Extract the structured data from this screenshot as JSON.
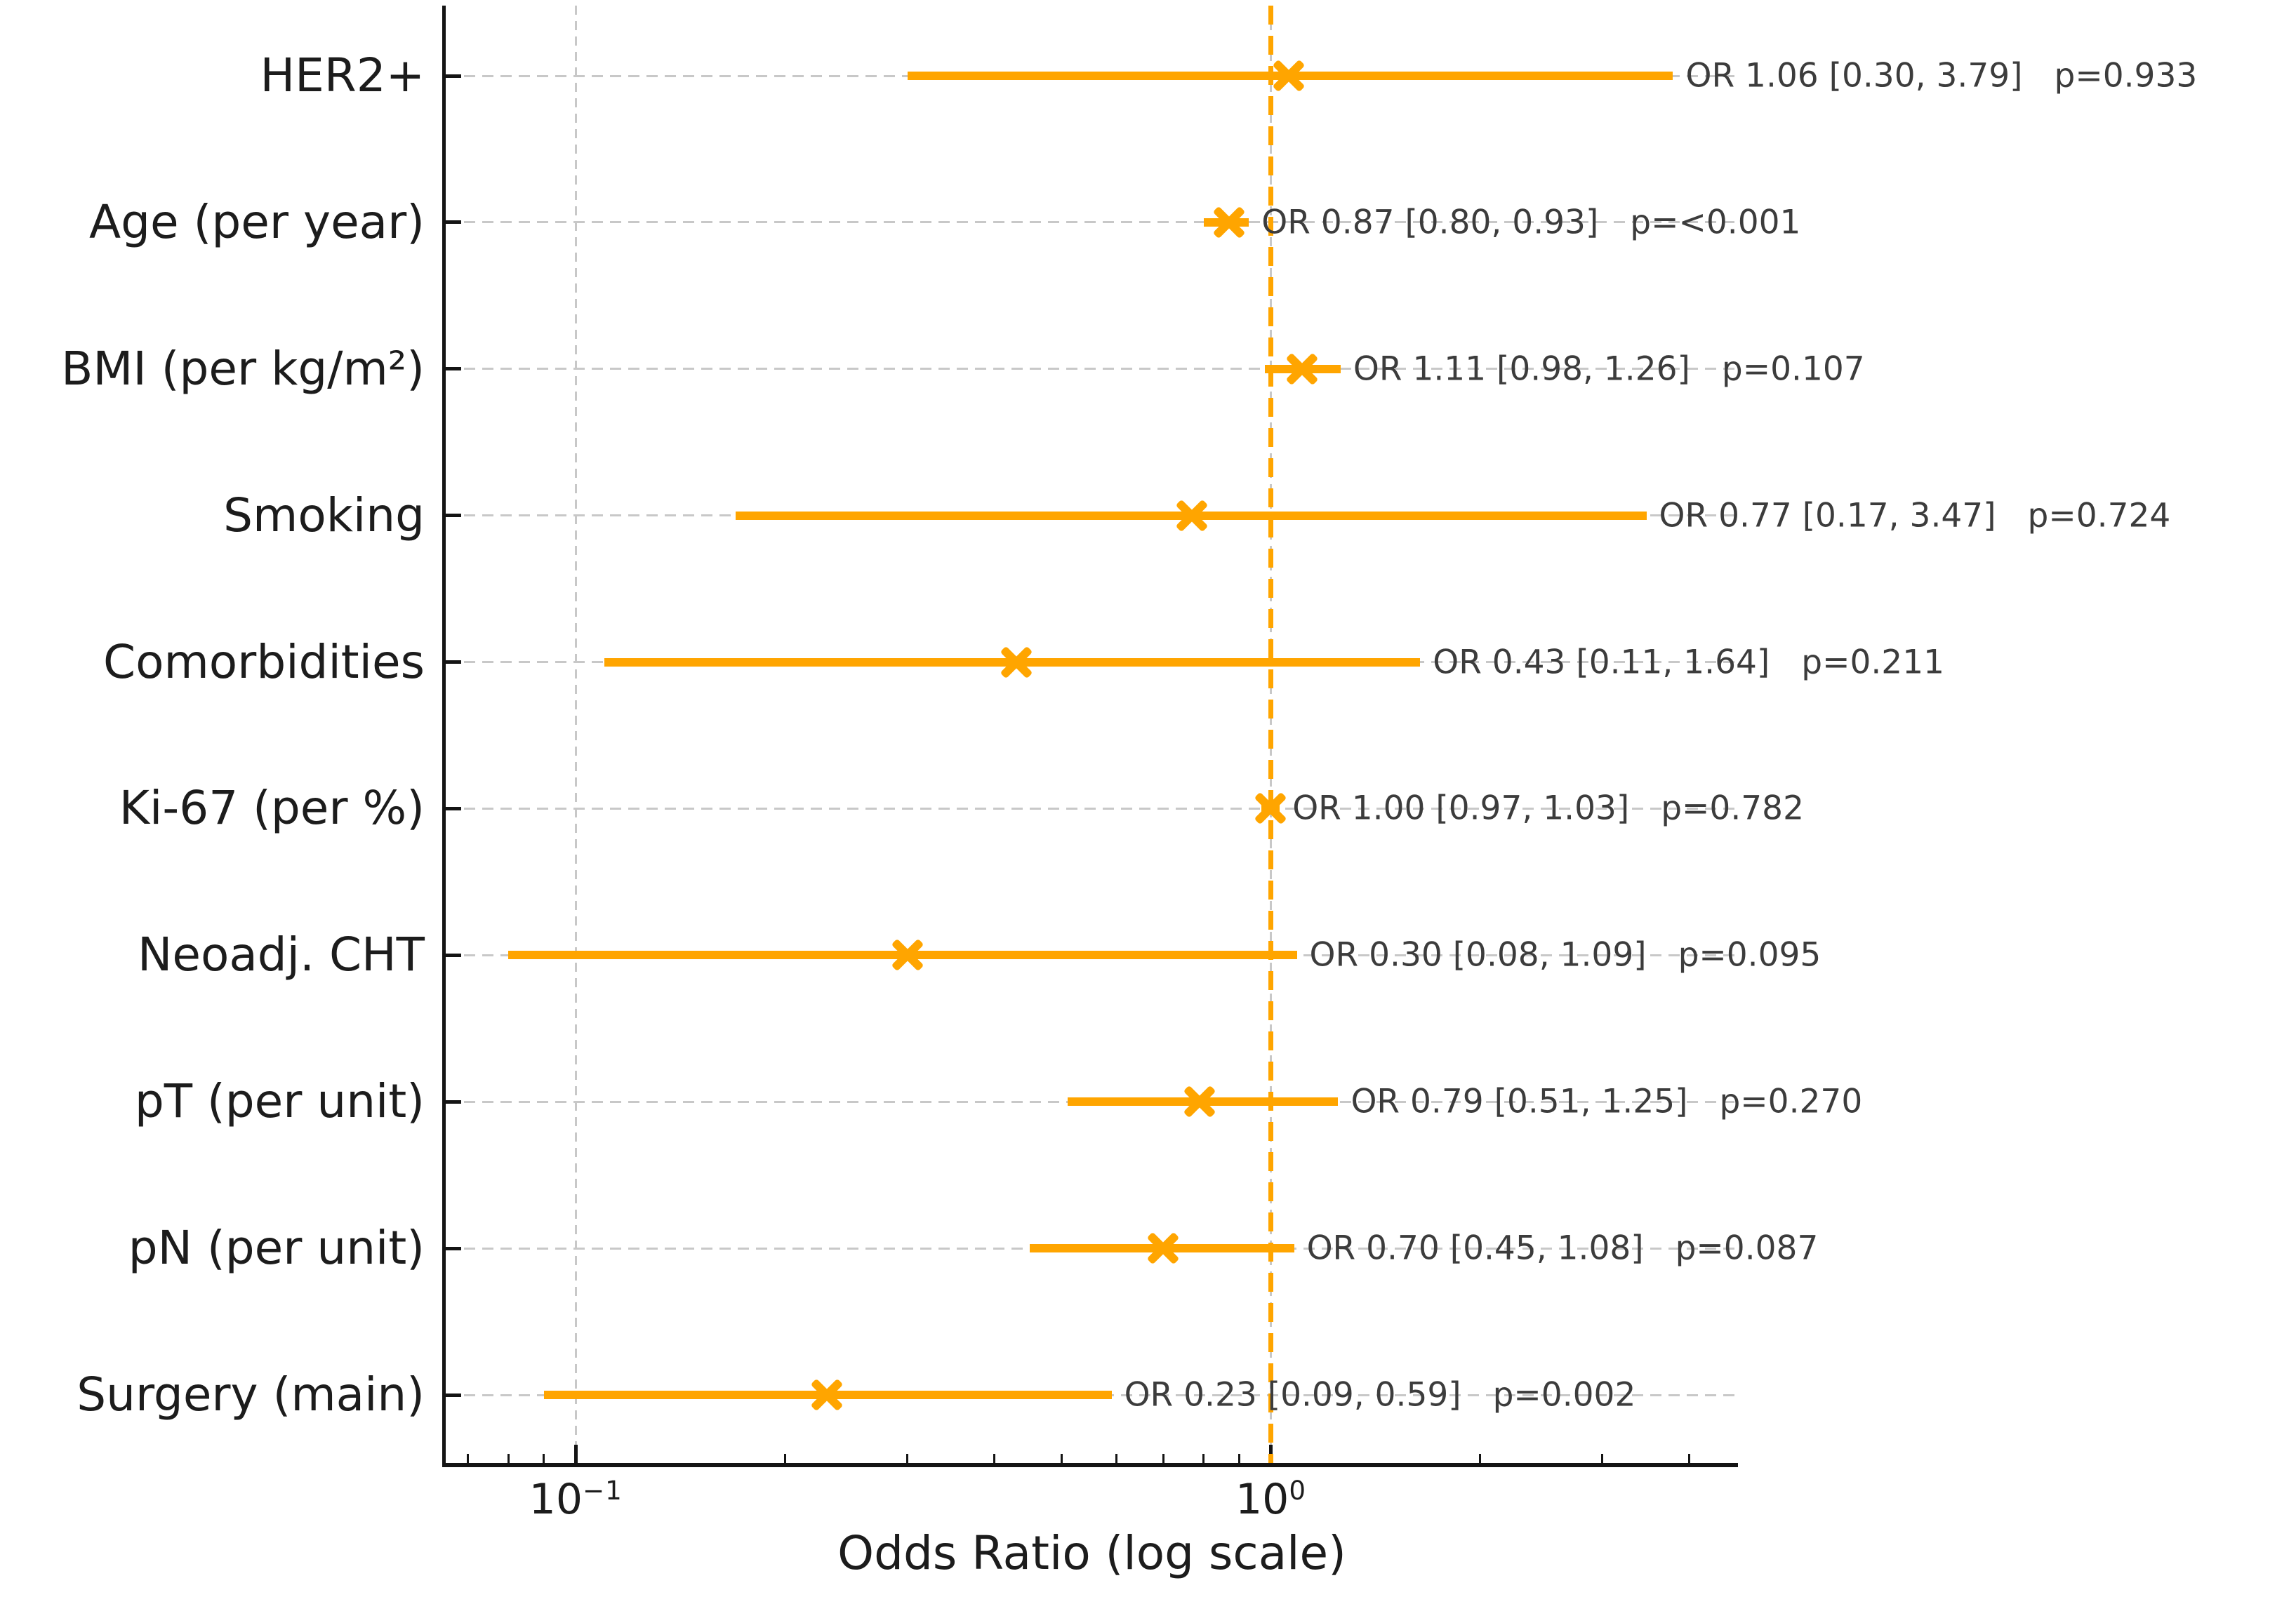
{
  "colors": {
    "accent_orange": "#FFA500",
    "grid_gray": "#c8c8c8",
    "axis_black": "#141414",
    "label_black": "#1c1c1c",
    "annotation_gray": "#3c3c3c",
    "background": "#ffffff"
  },
  "chart_data": {
    "type": "scatter",
    "variant": "forest_plot_odds_ratios",
    "title": "",
    "xlabel": "Odds Ratio (log scale)",
    "x_scale": "log",
    "xlim": [
      0.065,
      4.7
    ],
    "grid": true,
    "legend": "none",
    "reference_line_x": 1.0,
    "x_major_ticks": [
      0.1,
      1.0
    ],
    "x_tick_labels": [
      {
        "base": "10",
        "exp": "−1",
        "value": 0.1
      },
      {
        "base": "10",
        "exp": "0",
        "value": 1.0
      }
    ],
    "x_minor_ticks": [
      0.07,
      0.08,
      0.09,
      0.2,
      0.3,
      0.4,
      0.5,
      0.6,
      0.7,
      0.8,
      0.9,
      2,
      3,
      4
    ],
    "rows": [
      {
        "label": "HER2+",
        "or": 1.06,
        "ci_low": 0.3,
        "ci_high": 3.79,
        "p_value": "0.933",
        "or_text": "OR 1.06 [0.30, 3.79]",
        "p_text": "p=0.933"
      },
      {
        "label": "Age (per year)",
        "or": 0.87,
        "ci_low": 0.8,
        "ci_high": 0.93,
        "p_value": "<0.001",
        "or_text": "OR 0.87 [0.80, 0.93]",
        "p_text": "p=<0.001"
      },
      {
        "label": "BMI (per kg/m²)",
        "or": 1.11,
        "ci_low": 0.98,
        "ci_high": 1.26,
        "p_value": "0.107",
        "or_text": "OR 1.11 [0.98, 1.26]",
        "p_text": "p=0.107"
      },
      {
        "label": "Smoking",
        "or": 0.77,
        "ci_low": 0.17,
        "ci_high": 3.47,
        "p_value": "0.724",
        "or_text": "OR 0.77 [0.17, 3.47]",
        "p_text": "p=0.724"
      },
      {
        "label": "Comorbidities",
        "or": 0.43,
        "ci_low": 0.11,
        "ci_high": 1.64,
        "p_value": "0.211",
        "or_text": "OR 0.43 [0.11, 1.64]",
        "p_text": "p=0.211"
      },
      {
        "label": "Ki-67 (per %)",
        "or": 1.0,
        "ci_low": 0.97,
        "ci_high": 1.03,
        "p_value": "0.782",
        "or_text": "OR 1.00 [0.97, 1.03]",
        "p_text": "p=0.782"
      },
      {
        "label": "Neoadj. CHT",
        "or": 0.3,
        "ci_low": 0.08,
        "ci_high": 1.09,
        "p_value": "0.095",
        "or_text": "OR 0.30 [0.08, 1.09]",
        "p_text": "p=0.095"
      },
      {
        "label": "pT (per unit)",
        "or": 0.79,
        "ci_low": 0.51,
        "ci_high": 1.25,
        "p_value": "0.270",
        "or_text": "OR 0.79 [0.51, 1.25]",
        "p_text": "p=0.270"
      },
      {
        "label": "pN (per unit)",
        "or": 0.7,
        "ci_low": 0.45,
        "ci_high": 1.08,
        "p_value": "0.087",
        "or_text": "OR 0.70 [0.45, 1.08]",
        "p_text": "p=0.087"
      },
      {
        "label": "Surgery (main)",
        "or": 0.23,
        "ci_low": 0.09,
        "ci_high": 0.59,
        "p_value": "0.002",
        "or_text": "OR 0.23 [0.09, 0.59]",
        "p_text": "p=0.002"
      }
    ]
  }
}
